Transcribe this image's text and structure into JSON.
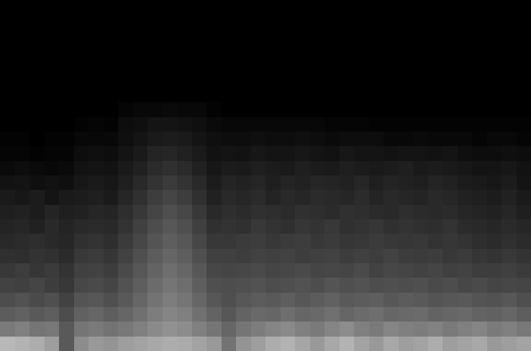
{
  "chart_data": {
    "type": "heatmap",
    "zlim": [
      0,
      100
    ],
    "tick_labels": false,
    "cells": [
      [
        0,
        0,
        0,
        0,
        0,
        0,
        0,
        0,
        0,
        0,
        0,
        0,
        0,
        0,
        0,
        0,
        0,
        0,
        0,
        0,
        0,
        0,
        0,
        0,
        0,
        0,
        0,
        0,
        0,
        0,
        0,
        0,
        0,
        0,
        0,
        0
      ],
      [
        0,
        0,
        0,
        0,
        0,
        0,
        0,
        0,
        0,
        0,
        0,
        0,
        0,
        0,
        0,
        0,
        0,
        0,
        0,
        0,
        0,
        0,
        0,
        0,
        0,
        0,
        0,
        0,
        0,
        0,
        0,
        0,
        0,
        0,
        0,
        0
      ],
      [
        0,
        0,
        0,
        0,
        0,
        0,
        0,
        0,
        0,
        0,
        0,
        0,
        0,
        0,
        0,
        0,
        0,
        0,
        0,
        0,
        0,
        0,
        0,
        0,
        0,
        0,
        0,
        0,
        0,
        0,
        0,
        0,
        0,
        0,
        0,
        0
      ],
      [
        0,
        0,
        0,
        0,
        0,
        0,
        0,
        0,
        0,
        0,
        0,
        0,
        0,
        0,
        0,
        0,
        0,
        0,
        0,
        0,
        0,
        0,
        0,
        0,
        0,
        0,
        0,
        0,
        0,
        0,
        0,
        0,
        0,
        0,
        0,
        0
      ],
      [
        0,
        0,
        0,
        0,
        0,
        0,
        0,
        0,
        0,
        0,
        0,
        0,
        0,
        0,
        0,
        0,
        0,
        0,
        0,
        0,
        0,
        0,
        0,
        0,
        0,
        0,
        0,
        0,
        0,
        0,
        0,
        0,
        0,
        0,
        0,
        0
      ],
      [
        0,
        0,
        0,
        0,
        0,
        0,
        0,
        0,
        0,
        0,
        0,
        0,
        0,
        0,
        0,
        0,
        0,
        0,
        0,
        0,
        0,
        0,
        0,
        0,
        0,
        0,
        0,
        0,
        0,
        0,
        0,
        0,
        0,
        0,
        0,
        0
      ],
      [
        0,
        0,
        0,
        0,
        0,
        0,
        0,
        0,
        0,
        0,
        0,
        0,
        0,
        0,
        0,
        0,
        0,
        0,
        0,
        0,
        0,
        0,
        0,
        0,
        0,
        0,
        0,
        0,
        0,
        0,
        0,
        0,
        0,
        0,
        0,
        0
      ],
      [
        0,
        0,
        0,
        0,
        0,
        0,
        0,
        0,
        2,
        3,
        3,
        4,
        3,
        3,
        1,
        0,
        0,
        0,
        0,
        0,
        0,
        0,
        0,
        0,
        0,
        0,
        0,
        0,
        0,
        0,
        0,
        0,
        0,
        0,
        0,
        0
      ],
      [
        0,
        0,
        0,
        0,
        0,
        1,
        2,
        1,
        5,
        6,
        8,
        8,
        7,
        6,
        4,
        3,
        3,
        3,
        3,
        3,
        3,
        3,
        2,
        2,
        2,
        1,
        1,
        1,
        1,
        1,
        1,
        1,
        1,
        1,
        1,
        1
      ],
      [
        1,
        1,
        0,
        1,
        1,
        3,
        3,
        3,
        6,
        8,
        10,
        11,
        10,
        8,
        6,
        5,
        5,
        6,
        5,
        5,
        6,
        5,
        4,
        5,
        5,
        5,
        3,
        3,
        4,
        3,
        3,
        3,
        2,
        3,
        3,
        2
      ],
      [
        2,
        2,
        1,
        2,
        2,
        5,
        6,
        5,
        8,
        10,
        14,
        15,
        13,
        10,
        7,
        8,
        7,
        9,
        8,
        8,
        9,
        8,
        7,
        9,
        8,
        8,
        7,
        8,
        8,
        7,
        8,
        6,
        5,
        5,
        6,
        5
      ],
      [
        4,
        5,
        4,
        3,
        4,
        7,
        8,
        7,
        10,
        13,
        17,
        19,
        17,
        13,
        9,
        11,
        10,
        12,
        11,
        10,
        12,
        11,
        10,
        12,
        11,
        10,
        11,
        12,
        10,
        11,
        10,
        9,
        8,
        8,
        9,
        7
      ],
      [
        7,
        8,
        6,
        7,
        6,
        9,
        10,
        9,
        12,
        16,
        20,
        23,
        20,
        16,
        11,
        14,
        13,
        15,
        12,
        14,
        13,
        15,
        14,
        13,
        15,
        12,
        14,
        13,
        12,
        14,
        13,
        11,
        10,
        9,
        11,
        8
      ],
      [
        10,
        9,
        11,
        8,
        10,
        11,
        12,
        10,
        15,
        19,
        24,
        27,
        24,
        19,
        13,
        16,
        15,
        17,
        14,
        16,
        15,
        17,
        16,
        15,
        17,
        14,
        16,
        15,
        14,
        16,
        15,
        13,
        12,
        11,
        13,
        10
      ],
      [
        12,
        13,
        11,
        14,
        12,
        13,
        15,
        14,
        18,
        22,
        27,
        31,
        28,
        22,
        16,
        18,
        17,
        19,
        18,
        17,
        19,
        18,
        17,
        19,
        18,
        17,
        16,
        18,
        17,
        16,
        17,
        15,
        14,
        13,
        15,
        12
      ],
      [
        14,
        15,
        13,
        16,
        14,
        16,
        17,
        16,
        20,
        25,
        30,
        34,
        31,
        25,
        19,
        20,
        19,
        22,
        20,
        19,
        21,
        20,
        22,
        19,
        20,
        21,
        19,
        20,
        19,
        18,
        20,
        17,
        16,
        15,
        17,
        15
      ],
      [
        16,
        17,
        18,
        16,
        15,
        19,
        20,
        18,
        23,
        28,
        33,
        37,
        34,
        28,
        22,
        22,
        23,
        24,
        22,
        23,
        24,
        22,
        23,
        21,
        22,
        23,
        22,
        21,
        22,
        20,
        21,
        20,
        18,
        17,
        19,
        17
      ],
      [
        19,
        18,
        20,
        19,
        17,
        22,
        23,
        21,
        26,
        31,
        36,
        40,
        37,
        31,
        25,
        25,
        24,
        26,
        25,
        26,
        24,
        25,
        26,
        24,
        25,
        24,
        26,
        24,
        23,
        24,
        22,
        23,
        21,
        20,
        22,
        20
      ],
      [
        22,
        24,
        21,
        23,
        20,
        25,
        26,
        24,
        29,
        34,
        39,
        43,
        40,
        34,
        28,
        27,
        28,
        29,
        27,
        28,
        29,
        27,
        28,
        27,
        29,
        26,
        28,
        27,
        26,
        27,
        25,
        26,
        24,
        24,
        25,
        23
      ],
      [
        26,
        25,
        27,
        24,
        22,
        28,
        29,
        27,
        32,
        37,
        42,
        46,
        43,
        37,
        31,
        30,
        31,
        32,
        30,
        31,
        32,
        30,
        33,
        31,
        32,
        30,
        31,
        30,
        31,
        29,
        30,
        28,
        29,
        27,
        28,
        27
      ],
      [
        30,
        32,
        29,
        31,
        26,
        33,
        34,
        31,
        35,
        40,
        45,
        49,
        46,
        40,
        34,
        31,
        34,
        36,
        35,
        37,
        34,
        36,
        38,
        35,
        36,
        37,
        34,
        36,
        35,
        33,
        34,
        35,
        33,
        32,
        34,
        31
      ],
      [
        36,
        38,
        35,
        37,
        30,
        38,
        40,
        37,
        40,
        44,
        49,
        52,
        50,
        44,
        39,
        34,
        39,
        41,
        40,
        43,
        40,
        41,
        44,
        40,
        42,
        43,
        40,
        41,
        42,
        39,
        40,
        41,
        39,
        38,
        40,
        37
      ],
      [
        48,
        50,
        46,
        47,
        35,
        46,
        48,
        45,
        47,
        50,
        54,
        57,
        55,
        50,
        46,
        40,
        46,
        49,
        52,
        54,
        50,
        48,
        52,
        55,
        50,
        48,
        52,
        50,
        49,
        51,
        48,
        50,
        52,
        48,
        50,
        47
      ],
      [
        72,
        70,
        68,
        62,
        35,
        55,
        60,
        58,
        62,
        64,
        66,
        68,
        67,
        64,
        60,
        45,
        58,
        62,
        68,
        70,
        65,
        60,
        66,
        70,
        64,
        60,
        66,
        62,
        64,
        68,
        62,
        64,
        66,
        60,
        62,
        64
      ]
    ]
  }
}
